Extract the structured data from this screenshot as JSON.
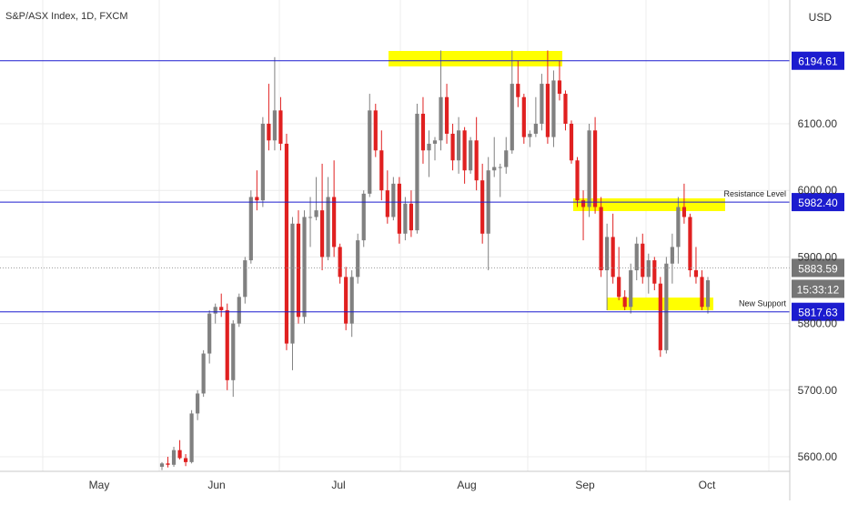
{
  "chart_data": {
    "type": "candlestick",
    "title": "S&P/ASX Index, 1D, FXCM",
    "currency": "USD",
    "y_axis": {
      "ticks": [
        5600,
        5700,
        5800,
        5900,
        6000,
        6100
      ],
      "tick_labels": [
        "5600.00",
        "5700.00",
        "5800.00",
        "5900.00",
        "6000.00",
        "6100.00"
      ],
      "range": [
        5580,
        6260
      ]
    },
    "x_axis": {
      "labels": [
        "May",
        "Jun",
        "Jul",
        "Aug",
        "Sep",
        "Oct"
      ]
    },
    "grid": true,
    "colors": {
      "up": "#808080",
      "down": "#e02020",
      "level_line": "#1c1ccf",
      "highlight": "#ffff00",
      "axis_text": "#333333",
      "price_badge": "#1c1ccf",
      "gray_badge": "#757575",
      "grid": "#ececec"
    },
    "levels": [
      {
        "id": "top-resistance",
        "value": 6194.61,
        "label": "6194.61"
      },
      {
        "id": "resistance",
        "value": 5982.4,
        "label": "5982.40",
        "annotation": "Resistance Level"
      },
      {
        "id": "support",
        "value": 5817.63,
        "label": "5817.63",
        "annotation": "New Support"
      }
    ],
    "current_price": {
      "value": 5883.59,
      "label": "5883.59",
      "countdown": "15:33:12"
    },
    "candles": [
      [
        5585,
        5592,
        5580,
        5590
      ],
      [
        5590,
        5600,
        5584,
        5588
      ],
      [
        5588,
        5615,
        5585,
        5610
      ],
      [
        5610,
        5625,
        5596,
        5598
      ],
      [
        5598,
        5604,
        5586,
        5592
      ],
      [
        5592,
        5670,
        5590,
        5665
      ],
      [
        5665,
        5700,
        5655,
        5695
      ],
      [
        5695,
        5760,
        5690,
        5755
      ],
      [
        5755,
        5820,
        5740,
        5815
      ],
      [
        5815,
        5830,
        5800,
        5825
      ],
      [
        5825,
        5845,
        5810,
        5820
      ],
      [
        5820,
        5830,
        5700,
        5715
      ],
      [
        5715,
        5805,
        5690,
        5800
      ],
      [
        5800,
        5845,
        5795,
        5840
      ],
      [
        5840,
        5900,
        5830,
        5895
      ],
      [
        5895,
        6000,
        5890,
        5990
      ],
      [
        5990,
        6030,
        5970,
        5985
      ],
      [
        5985,
        6110,
        5975,
        6100
      ],
      [
        6100,
        6160,
        6060,
        6075
      ],
      [
        6075,
        6200,
        6060,
        6120
      ],
      [
        6120,
        6140,
        6060,
        6070
      ],
      [
        6070,
        6085,
        5760,
        5770
      ],
      [
        5770,
        5960,
        5730,
        5950
      ],
      [
        5950,
        5970,
        5800,
        5810
      ],
      [
        5810,
        5970,
        5800,
        5960
      ],
      [
        5960,
        5990,
        5915,
        5960
      ],
      [
        5960,
        6020,
        5955,
        5970
      ],
      [
        5970,
        6040,
        5880,
        5900
      ],
      [
        5900,
        6020,
        5895,
        5990
      ],
      [
        5990,
        6045,
        5900,
        5915
      ],
      [
        5915,
        5920,
        5860,
        5870
      ],
      [
        5870,
        5885,
        5790,
        5800
      ],
      [
        5800,
        5880,
        5780,
        5870
      ],
      [
        5870,
        5935,
        5860,
        5925
      ],
      [
        5925,
        6000,
        5915,
        5995
      ],
      [
        5995,
        6145,
        5990,
        6120
      ],
      [
        6120,
        6130,
        6050,
        6060
      ],
      [
        6060,
        6090,
        5985,
        6000
      ],
      [
        6000,
        6030,
        5950,
        5960
      ],
      [
        5960,
        6020,
        5955,
        6010
      ],
      [
        6010,
        6020,
        5920,
        5935
      ],
      [
        5935,
        5990,
        5925,
        5980
      ],
      [
        5980,
        6000,
        5930,
        5940
      ],
      [
        5940,
        6130,
        5935,
        6115
      ],
      [
        6115,
        6140,
        6040,
        6060
      ],
      [
        6060,
        6090,
        6020,
        6070
      ],
      [
        6070,
        6080,
        6045,
        6075
      ],
      [
        6075,
        6210,
        6060,
        6140
      ],
      [
        6140,
        6160,
        6070,
        6085
      ],
      [
        6085,
        6100,
        6030,
        6045
      ],
      [
        6045,
        6110,
        6025,
        6090
      ],
      [
        6090,
        6095,
        6010,
        6030
      ],
      [
        6030,
        6080,
        6025,
        6075
      ],
      [
        6075,
        6110,
        6000,
        6015
      ],
      [
        6015,
        6040,
        5920,
        5935
      ],
      [
        5935,
        6050,
        5880,
        6030
      ],
      [
        6030,
        6080,
        6020,
        6035
      ],
      [
        6035,
        6040,
        5990,
        6035
      ],
      [
        6035,
        6080,
        6025,
        6060
      ],
      [
        6060,
        6210,
        6055,
        6160
      ],
      [
        6160,
        6195,
        6125,
        6140
      ],
      [
        6140,
        6145,
        6070,
        6080
      ],
      [
        6080,
        6090,
        6065,
        6085
      ],
      [
        6085,
        6140,
        6080,
        6100
      ],
      [
        6100,
        6175,
        6090,
        6160
      ],
      [
        6160,
        6210,
        6070,
        6080
      ],
      [
        6080,
        6180,
        6065,
        6165
      ],
      [
        6165,
        6195,
        6135,
        6145
      ],
      [
        6145,
        6150,
        6090,
        6100
      ],
      [
        6100,
        6105,
        6040,
        6045
      ],
      [
        6045,
        6050,
        5975,
        5985
      ],
      [
        5985,
        6000,
        5925,
        5975
      ],
      [
        5975,
        6100,
        5960,
        6090
      ],
      [
        6090,
        6110,
        5965,
        5975
      ],
      [
        5975,
        5990,
        5870,
        5880
      ],
      [
        5880,
        5950,
        5820,
        5930
      ],
      [
        5930,
        5965,
        5860,
        5870
      ],
      [
        5870,
        5915,
        5835,
        5840
      ],
      [
        5840,
        5850,
        5820,
        5825
      ],
      [
        5825,
        5890,
        5815,
        5880
      ],
      [
        5880,
        5930,
        5865,
        5920
      ],
      [
        5920,
        5935,
        5860,
        5870
      ],
      [
        5870,
        5905,
        5845,
        5895
      ],
      [
        5895,
        5900,
        5850,
        5860
      ],
      [
        5860,
        5870,
        5750,
        5760
      ],
      [
        5760,
        5900,
        5755,
        5890
      ],
      [
        5890,
        5935,
        5860,
        5915
      ],
      [
        5915,
        5990,
        5890,
        5975
      ],
      [
        5975,
        6010,
        5950,
        5960
      ],
      [
        5960,
        5965,
        5870,
        5880
      ],
      [
        5880,
        5915,
        5860,
        5870
      ],
      [
        5870,
        5880,
        5820,
        5825
      ],
      [
        5825,
        5870,
        5815,
        5865
      ]
    ]
  }
}
